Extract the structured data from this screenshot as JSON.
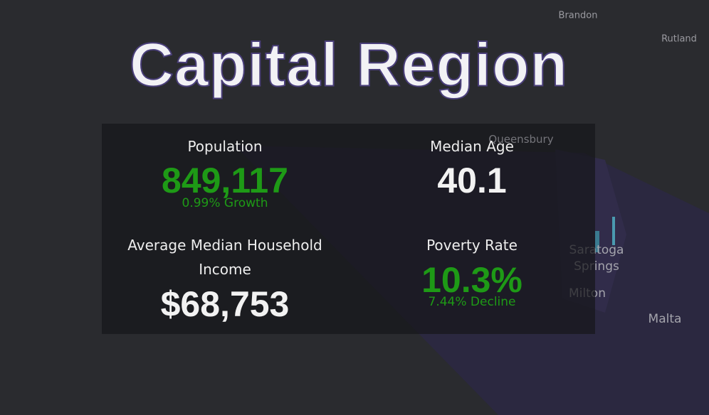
{
  "header": {
    "title": "Capital Region"
  },
  "stats": [
    {
      "label": "Population",
      "value": "849,117",
      "note": "0.99% Growth"
    },
    {
      "label": "Median Age",
      "value": "40.1"
    },
    {
      "label": "Average Median Household Income",
      "value": "$68,753"
    },
    {
      "label": "Poverty Rate",
      "value": "10.3%",
      "note": "7.44% Decline"
    }
  ],
  "map_labels": [
    "Brandon",
    "Rutland",
    "Queensbury",
    "Saratoga Springs",
    "Milton",
    "Malta"
  ]
}
